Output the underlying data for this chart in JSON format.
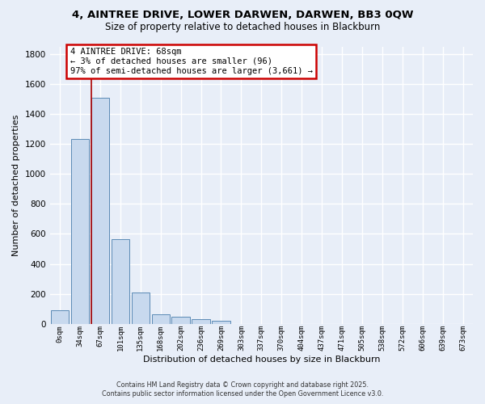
{
  "title": "4, AINTREE DRIVE, LOWER DARWEN, DARWEN, BB3 0QW",
  "subtitle": "Size of property relative to detached houses in Blackburn",
  "xlabel": "Distribution of detached houses by size in Blackburn",
  "ylabel": "Number of detached properties",
  "bar_color": "#c8d9ee",
  "bar_edge_color": "#5b8ab5",
  "background_color": "#e8eef8",
  "grid_color": "#ffffff",
  "annotation_box_color": "#ffffff",
  "annotation_box_edge": "#cc0000",
  "vline_color": "#aa0000",
  "categories": [
    "0sqm",
    "34sqm",
    "67sqm",
    "101sqm",
    "135sqm",
    "168sqm",
    "202sqm",
    "236sqm",
    "269sqm",
    "303sqm",
    "337sqm",
    "370sqm",
    "404sqm",
    "437sqm",
    "471sqm",
    "505sqm",
    "538sqm",
    "572sqm",
    "606sqm",
    "639sqm",
    "673sqm"
  ],
  "bar_heights": [
    90,
    1235,
    1510,
    565,
    210,
    65,
    45,
    30,
    20,
    0,
    0,
    0,
    0,
    0,
    0,
    0,
    0,
    0,
    0,
    0,
    0
  ],
  "ylim": [
    0,
    1850
  ],
  "yticks": [
    0,
    200,
    400,
    600,
    800,
    1000,
    1200,
    1400,
    1600,
    1800
  ],
  "vline_x_index": 2,
  "annotation_text": "4 AINTREE DRIVE: 68sqm\n← 3% of detached houses are smaller (96)\n97% of semi-detached houses are larger (3,661) →",
  "footer_text": "Contains HM Land Registry data © Crown copyright and database right 2025.\nContains public sector information licensed under the Open Government Licence v3.0."
}
